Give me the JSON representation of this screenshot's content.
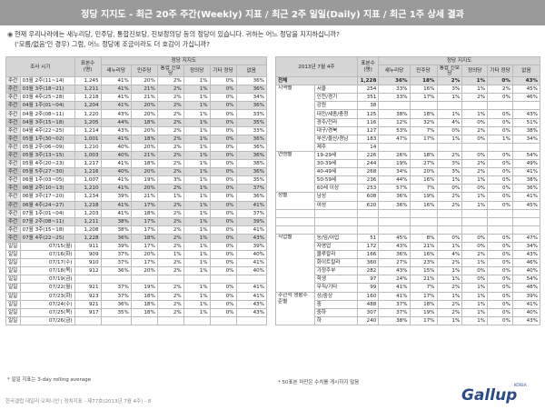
{
  "title": "정당 지지도 - 최근 20주 주간(Weekly) 지표 / 최근 2주 일일(Daily) 지표 / 최근 1주 상세 결과",
  "question": {
    "line1": "현재 우리나라에는 새누리당, 민주당, 통합진보당, 진보정의당 등의 정당이 있습니다. 귀하는 어느 정당을 지지하십니까?",
    "line2": "('모름/없음'인 경우) 그럼, 어느 정당에 조금이라도 더 호감이 가십니까?"
  },
  "left_table": {
    "header_group": "정당 지지도",
    "col_period": "조사 시기",
    "col_n": "표본수 (명)",
    "cols": [
      "새누리당",
      "민주당",
      "통합 진보당",
      "정의당",
      "기타 정당",
      "없음"
    ],
    "weekly_label": "주간",
    "weekly": [
      {
        "p": "03월 2주(11~14)",
        "n": "1,245",
        "v": [
          "41%",
          "20%",
          "2%",
          "1%",
          "0%",
          "36%"
        ],
        "s": false
      },
      {
        "p": "03월 3주(18~21)",
        "n": "1,211",
        "v": [
          "41%",
          "21%",
          "2%",
          "1%",
          "0%",
          "36%"
        ],
        "s": true
      },
      {
        "p": "03월 4주(25~28)",
        "n": "1,218",
        "v": [
          "41%",
          "21%",
          "2%",
          "1%",
          "0%",
          "34%"
        ],
        "s": false
      },
      {
        "p": "04월 1주(01~04)",
        "n": "1,204",
        "v": [
          "41%",
          "20%",
          "2%",
          "1%",
          "0%",
          "36%"
        ],
        "s": true
      },
      {
        "p": "04월 2주(08~11)",
        "n": "1,220",
        "v": [
          "43%",
          "20%",
          "2%",
          "1%",
          "0%",
          "33%"
        ],
        "s": false
      },
      {
        "p": "04월 3주(15~18)",
        "n": "1,205",
        "v": [
          "44%",
          "18%",
          "2%",
          "1%",
          "0%",
          "35%"
        ],
        "s": true
      },
      {
        "p": "04월 4주(22~25)",
        "n": "1,214",
        "v": [
          "43%",
          "20%",
          "2%",
          "1%",
          "0%",
          "33%"
        ],
        "s": false
      },
      {
        "p": "05월 1주(30~02)",
        "n": "1,001",
        "v": [
          "41%",
          "18%",
          "2%",
          "1%",
          "0%",
          "36%"
        ],
        "s": true
      },
      {
        "p": "05월 2주(06~09)",
        "n": "1,210",
        "v": [
          "40%",
          "20%",
          "2%",
          "1%",
          "0%",
          "36%"
        ],
        "s": false
      },
      {
        "p": "05월 3주(13~15)",
        "n": "1,003",
        "v": [
          "40%",
          "21%",
          "2%",
          "1%",
          "0%",
          "36%"
        ],
        "s": true
      },
      {
        "p": "05월 4주(20~23)",
        "n": "1,217",
        "v": [
          "41%",
          "18%",
          "2%",
          "1%",
          "0%",
          "38%"
        ],
        "s": false
      },
      {
        "p": "05월 5주(27~30)",
        "n": "1,216",
        "v": [
          "40%",
          "20%",
          "2%",
          "1%",
          "0%",
          "36%"
        ],
        "s": true
      },
      {
        "p": "06월 1주(03~05)",
        "n": "1,007",
        "v": [
          "41%",
          "19%",
          "3%",
          "1%",
          "0%",
          "35%"
        ],
        "s": false
      },
      {
        "p": "06월 2주(10~13)",
        "n": "1,210",
        "v": [
          "41%",
          "20%",
          "2%",
          "1%",
          "0%",
          "37%"
        ],
        "s": true
      },
      {
        "p": "06월 3주(17~20)",
        "n": "1,234",
        "v": [
          "39%",
          "21%",
          "1%",
          "1%",
          "0%",
          "36%"
        ],
        "s": false
      },
      {
        "p": "06월 4주(24~27)",
        "n": "1,218",
        "v": [
          "41%",
          "17%",
          "2%",
          "1%",
          "0%",
          "41%"
        ],
        "s": true
      },
      {
        "p": "07월 1주(01~04)",
        "n": "1,203",
        "v": [
          "41%",
          "18%",
          "2%",
          "1%",
          "0%",
          "37%"
        ],
        "s": false
      },
      {
        "p": "07월 2주(08~11)",
        "n": "1,211",
        "v": [
          "38%",
          "17%",
          "2%",
          "1%",
          "0%",
          "39%"
        ],
        "s": true
      },
      {
        "p": "07월 3주(15~18)",
        "n": "1,208",
        "v": [
          "38%",
          "17%",
          "2%",
          "1%",
          "0%",
          "41%"
        ],
        "s": false
      },
      {
        "p": "07월 4주(22~25)",
        "n": "1,228",
        "v": [
          "36%",
          "18%",
          "2%",
          "1%",
          "0%",
          "43%"
        ],
        "s": true
      }
    ],
    "daily_label": "일일",
    "daily": [
      {
        "p": "07/15(월)",
        "n": "911",
        "v": [
          "39%",
          "17%",
          "2%",
          "1%",
          "0%",
          "39%"
        ]
      },
      {
        "p": "07/16(화)",
        "n": "909",
        "v": [
          "37%",
          "20%",
          "1%",
          "1%",
          "0%",
          "40%"
        ]
      },
      {
        "p": "07/17(수)",
        "n": "910",
        "v": [
          "37%",
          "17%",
          "2%",
          "1%",
          "0%",
          "41%"
        ]
      },
      {
        "p": "07/18(목)",
        "n": "912",
        "v": [
          "36%",
          "20%",
          "2%",
          "1%",
          "0%",
          "40%"
        ]
      },
      {
        "p": "07/19(금)",
        "n": "",
        "v": [
          "",
          "",
          "",
          "",
          "",
          ""
        ]
      },
      {
        "p": "07/22(월)",
        "n": "921",
        "v": [
          "37%",
          "19%",
          "2%",
          "1%",
          "0%",
          "41%"
        ]
      },
      {
        "p": "07/23(화)",
        "n": "923",
        "v": [
          "37%",
          "18%",
          "2%",
          "1%",
          "0%",
          "41%"
        ]
      },
      {
        "p": "07/24(수)",
        "n": "921",
        "v": [
          "36%",
          "18%",
          "2%",
          "1%",
          "0%",
          "43%"
        ]
      },
      {
        "p": "07/25(목)",
        "n": "917",
        "v": [
          "35%",
          "18%",
          "2%",
          "1%",
          "0%",
          "43%"
        ]
      },
      {
        "p": "07/26(금)",
        "n": "",
        "v": [
          "",
          "",
          "",
          "",
          "",
          ""
        ]
      }
    ],
    "note": "* 일일 지표는 3-day rolling average"
  },
  "right_table": {
    "header_group": "정당 지지도",
    "col_period": "2013년 7월 4주",
    "col_n": "표본수 (명)",
    "cols": [
      "새누리당",
      "민주당",
      "통합 진보당",
      "정의당",
      "기타 정당",
      "없음"
    ],
    "total": {
      "label": "전체",
      "n": "1,228",
      "v": [
        "36%",
        "18%",
        "2%",
        "1%",
        "0%",
        "43%"
      ]
    },
    "rows": [
      {
        "g": "지역별",
        "l": "서울",
        "n": "254",
        "v": [
          "33%",
          "16%",
          "3%",
          "1%",
          "2%",
          "45%"
        ]
      },
      {
        "g": "",
        "l": "인천/경기",
        "n": "351",
        "v": [
          "33%",
          "17%",
          "1%",
          "2%",
          "0%",
          "46%"
        ]
      },
      {
        "g": "",
        "l": "강원",
        "n": "38",
        "v": [
          "",
          "",
          "",
          "",
          "",
          ""
        ]
      },
      {
        "g": "",
        "l": "대전/세종/충청",
        "n": "125",
        "v": [
          "38%",
          "18%",
          "1%",
          "1%",
          "0%",
          "43%"
        ]
      },
      {
        "g": "",
        "l": "광주/전라",
        "n": "116",
        "v": [
          "12%",
          "32%",
          "4%",
          "0%",
          "0%",
          "51%"
        ]
      },
      {
        "g": "",
        "l": "대구/경북",
        "n": "127",
        "v": [
          "53%",
          "7%",
          "0%",
          "2%",
          "0%",
          "38%"
        ]
      },
      {
        "g": "",
        "l": "부산/울산/경남",
        "n": "183",
        "v": [
          "47%",
          "17%",
          "1%",
          "0%",
          "1%",
          "34%"
        ]
      },
      {
        "g": "",
        "l": "제주",
        "n": "14",
        "v": [
          "",
          "",
          "",
          "",
          "",
          ""
        ]
      },
      {
        "g": "연령별",
        "l": "19-29세",
        "n": "226",
        "v": [
          "26%",
          "18%",
          "2%",
          "0%",
          "0%",
          "54%"
        ]
      },
      {
        "g": "",
        "l": "30-39세",
        "n": "244",
        "v": [
          "19%",
          "27%",
          "3%",
          "2%",
          "0%",
          "49%"
        ]
      },
      {
        "g": "",
        "l": "40-49세",
        "n": "268",
        "v": [
          "34%",
          "20%",
          "3%",
          "2%",
          "0%",
          "41%"
        ]
      },
      {
        "g": "",
        "l": "50-59세",
        "n": "236",
        "v": [
          "44%",
          "16%",
          "1%",
          "1%",
          "0%",
          "38%"
        ]
      },
      {
        "g": "",
        "l": "60세 이상",
        "n": "253",
        "v": [
          "57%",
          "7%",
          "0%",
          "0%",
          "0%",
          "36%"
        ]
      },
      {
        "g": "성별",
        "l": "남성",
        "n": "608",
        "v": [
          "36%",
          "19%",
          "2%",
          "1%",
          "0%",
          "41%"
        ]
      },
      {
        "g": "",
        "l": "여성",
        "n": "620",
        "v": [
          "36%",
          "16%",
          "2%",
          "1%",
          "0%",
          "45%"
        ]
      },
      {
        "g": "",
        "l": "",
        "n": "",
        "v": [
          "",
          "",
          "",
          "",
          "",
          ""
        ]
      },
      {
        "g": "",
        "l": "",
        "n": "",
        "v": [
          "",
          "",
          "",
          "",
          "",
          ""
        ]
      },
      {
        "g": "",
        "l": "",
        "n": "",
        "v": [
          "",
          "",
          "",
          "",
          "",
          ""
        ]
      },
      {
        "g": "직업별",
        "l": "농/임/어업",
        "n": "51",
        "v": [
          "45%",
          "8%",
          "0%",
          "0%",
          "0%",
          "47%"
        ]
      },
      {
        "g": "",
        "l": "자영업",
        "n": "172",
        "v": [
          "43%",
          "21%",
          "1%",
          "0%",
          "0%",
          "34%"
        ]
      },
      {
        "g": "",
        "l": "블루칼라",
        "n": "166",
        "v": [
          "36%",
          "16%",
          "4%",
          "2%",
          "0%",
          "43%"
        ]
      },
      {
        "g": "",
        "l": "화이트칼라",
        "n": "360",
        "v": [
          "27%",
          "23%",
          "2%",
          "1%",
          "0%",
          "46%"
        ]
      },
      {
        "g": "",
        "l": "가정주부",
        "n": "282",
        "v": [
          "43%",
          "15%",
          "1%",
          "0%",
          "0%",
          "40%"
        ]
      },
      {
        "g": "",
        "l": "학생",
        "n": "97",
        "v": [
          "24%",
          "21%",
          "1%",
          "0%",
          "0%",
          "54%"
        ]
      },
      {
        "g": "",
        "l": "무직/기타",
        "n": "99",
        "v": [
          "41%",
          "7%",
          "2%",
          "1%",
          "0%",
          "48%"
        ]
      },
      {
        "g": "주관적 생활수준별",
        "l": "상/중상",
        "n": "160",
        "v": [
          "41%",
          "17%",
          "1%",
          "1%",
          "0%",
          "39%"
        ]
      },
      {
        "g": "",
        "l": "중",
        "n": "488",
        "v": [
          "37%",
          "18%",
          "2%",
          "1%",
          "0%",
          "41%"
        ]
      },
      {
        "g": "",
        "l": "중하",
        "n": "307",
        "v": [
          "37%",
          "19%",
          "2%",
          "1%",
          "0%",
          "40%"
        ]
      },
      {
        "g": "",
        "l": "하",
        "n": "240",
        "v": [
          "38%",
          "17%",
          "1%",
          "1%",
          "0%",
          "43%"
        ]
      }
    ],
    "note": "* 50표본 미만은 수치를 게시하지 않음"
  },
  "footer": "한국갤럽 데일리 오피니언 | 정치지표 - 제77호(2013년 7월 4주) - 8",
  "logo": "Gallup",
  "logo_small": "KOREA"
}
